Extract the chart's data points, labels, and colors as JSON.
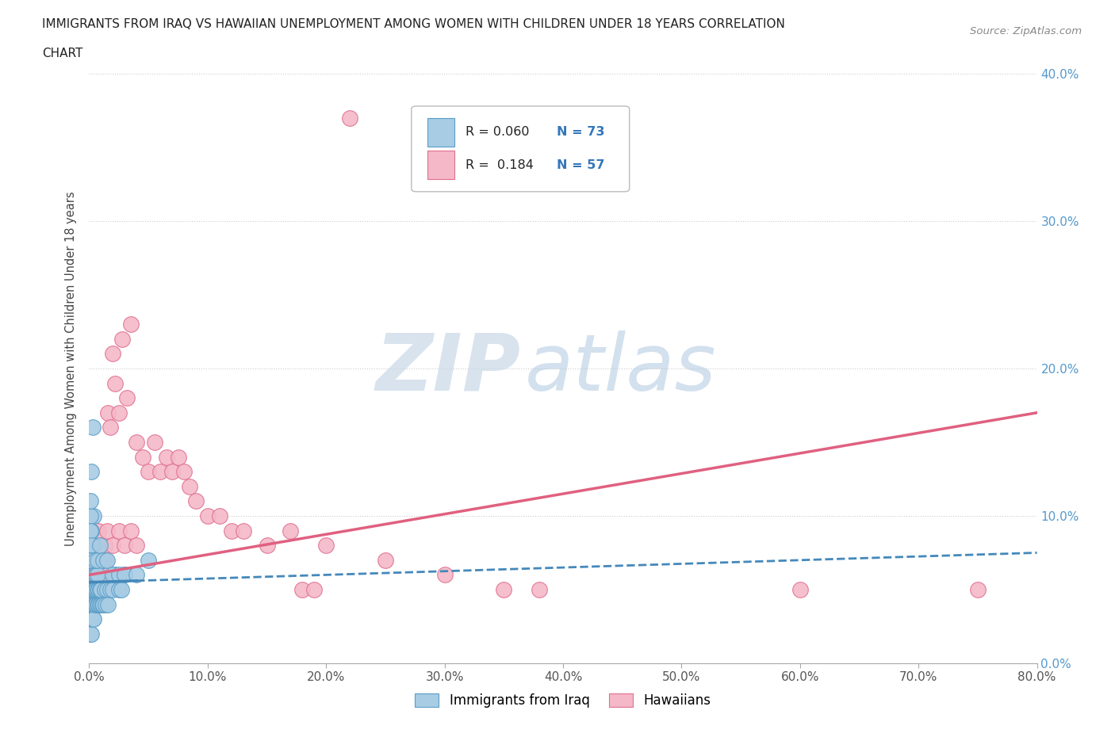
{
  "title_line1": "IMMIGRANTS FROM IRAQ VS HAWAIIAN UNEMPLOYMENT AMONG WOMEN WITH CHILDREN UNDER 18 YEARS CORRELATION",
  "title_line2": "CHART",
  "source_text": "Source: ZipAtlas.com",
  "ylabel": "Unemployment Among Women with Children Under 18 years",
  "xlim": [
    0.0,
    0.8
  ],
  "ylim": [
    0.0,
    0.4
  ],
  "watermark_zip": "ZIP",
  "watermark_atlas": "atlas",
  "series1_color": "#a8cce4",
  "series1_edge": "#5a9ec8",
  "series2_color": "#f4b8c8",
  "series2_edge": "#e07090",
  "trendline1_color": "#4488bb",
  "trendline2_color": "#e06080",
  "background_color": "#ffffff",
  "grid_color": "#cccccc",
  "right_axis_color": "#5599cc",
  "s1_x": [
    0.001,
    0.001,
    0.001,
    0.001,
    0.001,
    0.001,
    0.001,
    0.002,
    0.002,
    0.002,
    0.002,
    0.002,
    0.002,
    0.002,
    0.002,
    0.003,
    0.003,
    0.003,
    0.003,
    0.003,
    0.004,
    0.004,
    0.004,
    0.004,
    0.004,
    0.005,
    0.005,
    0.005,
    0.005,
    0.006,
    0.006,
    0.006,
    0.007,
    0.007,
    0.007,
    0.008,
    0.008,
    0.009,
    0.009,
    0.01,
    0.01,
    0.011,
    0.012,
    0.013,
    0.014,
    0.015,
    0.016,
    0.018,
    0.02,
    0.022,
    0.025,
    0.027,
    0.03,
    0.003,
    0.002,
    0.004,
    0.003,
    0.001,
    0.001,
    0.002,
    0.001,
    0.001,
    0.002,
    0.005,
    0.007,
    0.009,
    0.012,
    0.015,
    0.02,
    0.025,
    0.03,
    0.04,
    0.05
  ],
  "s1_y": [
    0.04,
    0.05,
    0.06,
    0.07,
    0.03,
    0.08,
    0.02,
    0.04,
    0.05,
    0.06,
    0.07,
    0.03,
    0.08,
    0.09,
    0.02,
    0.04,
    0.05,
    0.06,
    0.03,
    0.07,
    0.04,
    0.05,
    0.06,
    0.03,
    0.07,
    0.04,
    0.05,
    0.06,
    0.07,
    0.04,
    0.05,
    0.06,
    0.04,
    0.05,
    0.06,
    0.04,
    0.05,
    0.04,
    0.05,
    0.04,
    0.05,
    0.04,
    0.04,
    0.05,
    0.04,
    0.05,
    0.04,
    0.05,
    0.05,
    0.06,
    0.05,
    0.05,
    0.06,
    0.16,
    0.13,
    0.1,
    0.08,
    0.1,
    0.09,
    0.08,
    0.11,
    0.07,
    0.07,
    0.07,
    0.07,
    0.08,
    0.07,
    0.07,
    0.06,
    0.06,
    0.06,
    0.06,
    0.07
  ],
  "s2_x": [
    0.001,
    0.002,
    0.003,
    0.004,
    0.005,
    0.006,
    0.007,
    0.008,
    0.009,
    0.01,
    0.011,
    0.012,
    0.013,
    0.014,
    0.015,
    0.016,
    0.018,
    0.02,
    0.022,
    0.025,
    0.028,
    0.032,
    0.035,
    0.04,
    0.045,
    0.05,
    0.055,
    0.06,
    0.065,
    0.07,
    0.075,
    0.08,
    0.085,
    0.09,
    0.1,
    0.11,
    0.12,
    0.13,
    0.15,
    0.17,
    0.2,
    0.25,
    0.3,
    0.35,
    0.008,
    0.015,
    0.02,
    0.025,
    0.03,
    0.035,
    0.04,
    0.18,
    0.19,
    0.22,
    0.38,
    0.6,
    0.75
  ],
  "s2_y": [
    0.05,
    0.06,
    0.07,
    0.06,
    0.07,
    0.06,
    0.08,
    0.07,
    0.06,
    0.08,
    0.07,
    0.06,
    0.08,
    0.07,
    0.06,
    0.17,
    0.16,
    0.21,
    0.19,
    0.17,
    0.22,
    0.18,
    0.23,
    0.15,
    0.14,
    0.13,
    0.15,
    0.13,
    0.14,
    0.13,
    0.14,
    0.13,
    0.12,
    0.11,
    0.1,
    0.1,
    0.09,
    0.09,
    0.08,
    0.09,
    0.08,
    0.07,
    0.06,
    0.05,
    0.09,
    0.09,
    0.08,
    0.09,
    0.08,
    0.09,
    0.08,
    0.05,
    0.05,
    0.37,
    0.05,
    0.05,
    0.05
  ],
  "trend1_x0": 0.0,
  "trend1_x1": 0.8,
  "trend1_y0": 0.055,
  "trend1_y1": 0.075,
  "trend1_solid_x1": 0.04,
  "trend2_x0": 0.0,
  "trend2_x1": 0.8,
  "trend2_y0": 0.06,
  "trend2_y1": 0.17
}
